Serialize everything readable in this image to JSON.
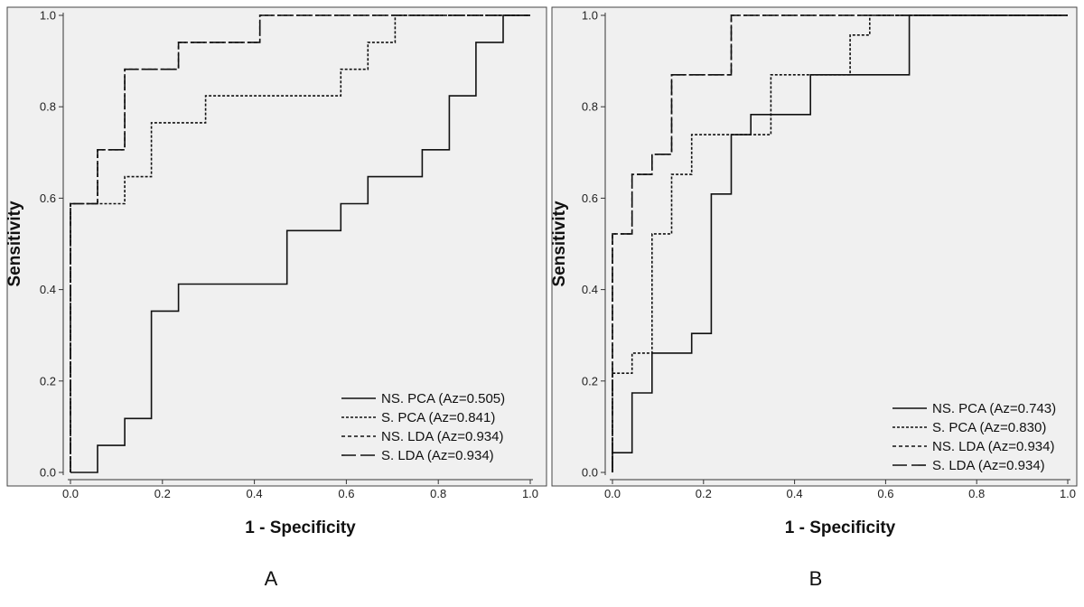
{
  "chart_data": [
    {
      "type": "line",
      "panel_label": "A",
      "xlabel": "1 - Specificity",
      "ylabel": "Sensitivity",
      "xlim": [
        0,
        1
      ],
      "ylim": [
        0,
        1
      ],
      "x_ticks": [
        "0.0",
        "0.2",
        "0.4",
        "0.6",
        "0.8",
        "1.0"
      ],
      "y_ticks": [
        "0.0",
        "0.2",
        "0.4",
        "0.6",
        "0.8",
        "1.0"
      ],
      "legend_position": "bottom-right",
      "series": [
        {
          "name": "NS. PCA (Az=0.505)",
          "dash": "solid",
          "points": [
            [
              0,
              0
            ],
            [
              0.059,
              0
            ],
            [
              0.059,
              0.059
            ],
            [
              0.118,
              0.059
            ],
            [
              0.118,
              0.118
            ],
            [
              0.176,
              0.118
            ],
            [
              0.176,
              0.353
            ],
            [
              0.235,
              0.353
            ],
            [
              0.235,
              0.412
            ],
            [
              0.471,
              0.412
            ],
            [
              0.471,
              0.529
            ],
            [
              0.588,
              0.529
            ],
            [
              0.588,
              0.588
            ],
            [
              0.647,
              0.588
            ],
            [
              0.647,
              0.647
            ],
            [
              0.765,
              0.647
            ],
            [
              0.765,
              0.706
            ],
            [
              0.824,
              0.706
            ],
            [
              0.824,
              0.824
            ],
            [
              0.882,
              0.824
            ],
            [
              0.882,
              0.941
            ],
            [
              0.941,
              0.941
            ],
            [
              0.941,
              1
            ],
            [
              1,
              1
            ]
          ]
        },
        {
          "name": "S. PCA (Az=0.841)",
          "dash": "dotted",
          "points": [
            [
              0,
              0
            ],
            [
              0,
              0.588
            ],
            [
              0.118,
              0.588
            ],
            [
              0.118,
              0.647
            ],
            [
              0.176,
              0.647
            ],
            [
              0.176,
              0.765
            ],
            [
              0.294,
              0.765
            ],
            [
              0.294,
              0.824
            ],
            [
              0.588,
              0.824
            ],
            [
              0.588,
              0.882
            ],
            [
              0.647,
              0.882
            ],
            [
              0.647,
              0.941
            ],
            [
              0.706,
              0.941
            ],
            [
              0.706,
              1
            ],
            [
              1,
              1
            ]
          ]
        },
        {
          "name": "NS. LDA (Az=0.934)",
          "dash": "short",
          "points": [
            [
              0,
              0
            ],
            [
              0,
              0.588
            ],
            [
              0.059,
              0.588
            ],
            [
              0.059,
              0.706
            ],
            [
              0.118,
              0.706
            ],
            [
              0.118,
              0.882
            ],
            [
              0.235,
              0.882
            ],
            [
              0.235,
              0.941
            ],
            [
              0.412,
              0.941
            ],
            [
              0.412,
              1
            ],
            [
              1,
              1
            ]
          ]
        },
        {
          "name": "S. LDA (Az=0.934)",
          "dash": "long",
          "points": [
            [
              0,
              0
            ],
            [
              0,
              0.588
            ],
            [
              0.059,
              0.588
            ],
            [
              0.059,
              0.706
            ],
            [
              0.118,
              0.706
            ],
            [
              0.118,
              0.882
            ],
            [
              0.235,
              0.882
            ],
            [
              0.235,
              0.941
            ],
            [
              0.412,
              0.941
            ],
            [
              0.412,
              1
            ],
            [
              1,
              1
            ]
          ]
        }
      ]
    },
    {
      "type": "line",
      "panel_label": "B",
      "xlabel": "1 - Specificity",
      "ylabel": "Sensitivity",
      "xlim": [
        0,
        1
      ],
      "ylim": [
        0,
        1
      ],
      "x_ticks": [
        "0.0",
        "0.2",
        "0.4",
        "0.6",
        "0.8",
        "1.0"
      ],
      "y_ticks": [
        "0.0",
        "0.2",
        "0.4",
        "0.6",
        "0.8",
        "1.0"
      ],
      "legend_position": "bottom-right",
      "series": [
        {
          "name": "NS. PCA (Az=0.743)",
          "dash": "solid",
          "points": [
            [
              0,
              0
            ],
            [
              0,
              0.043
            ],
            [
              0.043,
              0.043
            ],
            [
              0.043,
              0.174
            ],
            [
              0.087,
              0.174
            ],
            [
              0.087,
              0.261
            ],
            [
              0.174,
              0.261
            ],
            [
              0.174,
              0.304
            ],
            [
              0.217,
              0.304
            ],
            [
              0.217,
              0.609
            ],
            [
              0.261,
              0.609
            ],
            [
              0.261,
              0.739
            ],
            [
              0.304,
              0.739
            ],
            [
              0.304,
              0.783
            ],
            [
              0.435,
              0.783
            ],
            [
              0.435,
              0.87
            ],
            [
              0.652,
              0.87
            ],
            [
              0.652,
              1
            ],
            [
              1,
              1
            ]
          ]
        },
        {
          "name": "S. PCA (Az=0.830)",
          "dash": "dotted",
          "points": [
            [
              0,
              0
            ],
            [
              0,
              0.217
            ],
            [
              0.043,
              0.217
            ],
            [
              0.043,
              0.261
            ],
            [
              0.087,
              0.261
            ],
            [
              0.087,
              0.522
            ],
            [
              0.13,
              0.522
            ],
            [
              0.13,
              0.652
            ],
            [
              0.174,
              0.652
            ],
            [
              0.174,
              0.739
            ],
            [
              0.348,
              0.739
            ],
            [
              0.348,
              0.87
            ],
            [
              0.522,
              0.87
            ],
            [
              0.522,
              0.957
            ],
            [
              0.565,
              0.957
            ],
            [
              0.565,
              1
            ],
            [
              1,
              1
            ]
          ]
        },
        {
          "name": "NS. LDA (Az=0.934)",
          "dash": "short",
          "points": [
            [
              0,
              0
            ],
            [
              0,
              0.522
            ],
            [
              0.043,
              0.522
            ],
            [
              0.043,
              0.652
            ],
            [
              0.087,
              0.652
            ],
            [
              0.087,
              0.696
            ],
            [
              0.13,
              0.696
            ],
            [
              0.13,
              0.87
            ],
            [
              0.261,
              0.87
            ],
            [
              0.261,
              1
            ],
            [
              1,
              1
            ]
          ]
        },
        {
          "name": "S. LDA (Az=0.934)",
          "dash": "long",
          "points": [
            [
              0,
              0
            ],
            [
              0,
              0.522
            ],
            [
              0.043,
              0.522
            ],
            [
              0.043,
              0.652
            ],
            [
              0.087,
              0.652
            ],
            [
              0.087,
              0.696
            ],
            [
              0.13,
              0.696
            ],
            [
              0.13,
              0.87
            ],
            [
              0.261,
              0.87
            ],
            [
              0.261,
              1
            ],
            [
              1,
              1
            ]
          ]
        }
      ]
    }
  ]
}
